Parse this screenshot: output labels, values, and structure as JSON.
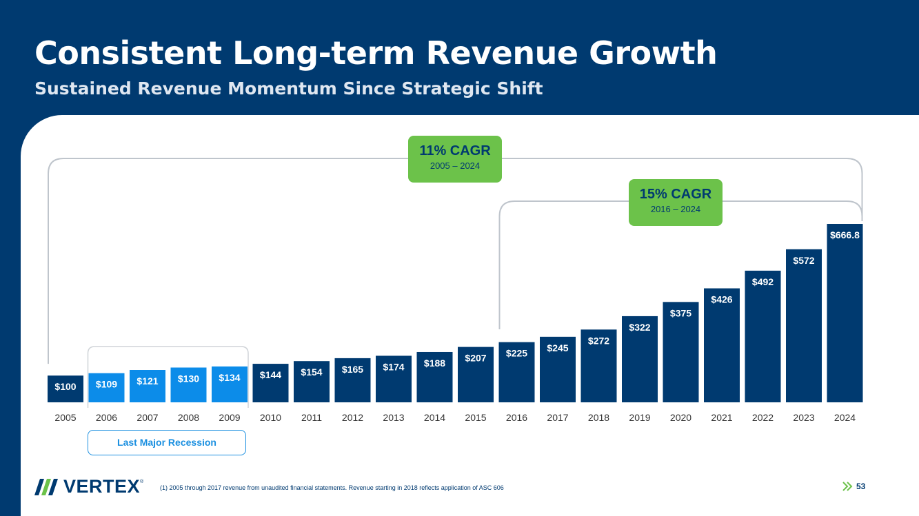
{
  "header": {
    "title": "Consistent Long-term Revenue Growth",
    "subtitle": "Sustained Revenue Momentum Since Strategic Shift"
  },
  "badges": {
    "cagr_long": {
      "rate": "11% CAGR",
      "period": "2005 – 2024",
      "start_year": "2005",
      "end_year": "2024"
    },
    "cagr_short": {
      "rate": "15% CAGR",
      "period": "2016 – 2024",
      "start_year": "2016",
      "end_year": "2024"
    }
  },
  "recession_label": "Last Major Recession",
  "recession_years": [
    "2006",
    "2007",
    "2008",
    "2009"
  ],
  "footnote": "(1) 2005 through 2017 revenue from unaudited financial statements.  Revenue starting in 2018 reflects application of ASC 606",
  "page_number": "53",
  "logo": {
    "text": "VERTEX",
    "mark": "®"
  },
  "colors": {
    "bar": "#003A70",
    "bar_highlight": "#0C8CE9",
    "badge": "#6CC24A",
    "background": "#003A70",
    "bracket": "#BFC5CC"
  },
  "chart_data": {
    "type": "bar",
    "categories": [
      "2005",
      "2006",
      "2007",
      "2008",
      "2009",
      "2010",
      "2011",
      "2012",
      "2013",
      "2014",
      "2015",
      "2016",
      "2017",
      "2018",
      "2019",
      "2020",
      "2021",
      "2022",
      "2023",
      "2024"
    ],
    "values": [
      100,
      109,
      121,
      130,
      134,
      144,
      154,
      165,
      174,
      188,
      207,
      225,
      245,
      272,
      322,
      375,
      426,
      492,
      572,
      666.8
    ],
    "labels": [
      "$100",
      "$109",
      "$121",
      "$130",
      "$134",
      "$144",
      "$154",
      "$165",
      "$174",
      "$188",
      "$207",
      "$225",
      "$245",
      "$272",
      "$322",
      "$375",
      "$426",
      "$492",
      "$572",
      "$666.8"
    ],
    "title": "",
    "xlabel": "",
    "ylabel": "",
    "ylim": [
      0,
      666.8
    ],
    "grid": false
  }
}
